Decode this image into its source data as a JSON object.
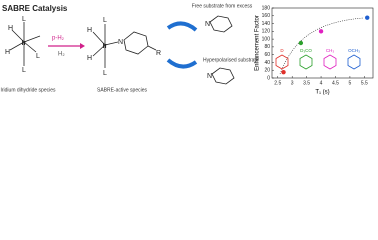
{
  "diagram": {
    "title": "SABRE Catalysis",
    "captions": [
      "Iridium dihydride species",
      "SABRE-active species",
      "Free substrate from excess",
      "Hyperpolarised substrate"
    ],
    "atoms": [
      "H",
      "H",
      "Ir",
      "L",
      "L",
      "L",
      "p-H₂",
      "H₂",
      "H",
      "H",
      "Ir",
      "N",
      "R",
      "L",
      "L",
      "N",
      "N"
    ]
  },
  "chart_data": {
    "type": "scatter",
    "x_label": "T₁ (s)",
    "y_label": "Enhancement Factor",
    "x": [
      2.7,
      3.3,
      4.0,
      5.6
    ],
    "values": [
      15,
      90,
      120,
      155
    ],
    "colors": [
      "#e0302a",
      "#2ca02c",
      "#e020c0",
      "#1f5fd0"
    ],
    "substituents": [
      "D",
      "D₃CO",
      "CH₃",
      "OCH₃"
    ],
    "xlim": [
      2.3,
      5.8
    ],
    "ylim": [
      0,
      180
    ],
    "xticks": [
      2.5,
      3.0,
      3.5,
      4.0,
      4.5,
      5.0,
      5.5
    ],
    "yticks": [
      0,
      20,
      40,
      60,
      80,
      100,
      120,
      140,
      160,
      180
    ]
  }
}
